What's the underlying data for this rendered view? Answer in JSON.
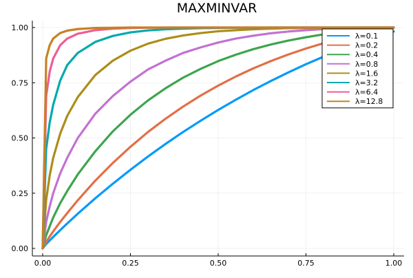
{
  "chart_data": {
    "type": "line",
    "title": "MAXMINVAR",
    "xlabel": "",
    "ylabel": "",
    "xlim": [
      0,
      1
    ],
    "ylim": [
      0,
      1
    ],
    "x_ticks": [
      0,
      0.25,
      0.5,
      0.75,
      1
    ],
    "y_ticks": [
      0,
      0.25,
      0.5,
      0.75,
      1
    ],
    "x_tick_labels": [
      "0.00",
      "0.25",
      "0.50",
      "0.75",
      "1.00"
    ],
    "y_tick_labels": [
      "0.00",
      "0.25",
      "0.50",
      "0.75",
      "1.00"
    ],
    "grid": true,
    "legend_position": "top-right",
    "x": [
      0,
      0.01,
      0.02,
      0.03,
      0.05,
      0.07,
      0.1,
      0.15,
      0.2,
      0.25,
      0.3,
      0.35,
      0.4,
      0.45,
      0.5,
      0.55,
      0.6,
      0.65,
      0.7,
      0.75,
      0.8,
      0.85,
      0.9,
      0.95,
      1.0
    ],
    "series": [
      {
        "name": "λ=0.1",
        "color": "#009af9",
        "values": [
          0,
          0.02,
          0.036,
          0.052,
          0.083,
          0.113,
          0.157,
          0.227,
          0.293,
          0.356,
          0.416,
          0.473,
          0.527,
          0.578,
          0.627,
          0.673,
          0.717,
          0.758,
          0.797,
          0.834,
          0.868,
          0.9,
          0.93,
          0.957,
          0.982
        ]
      },
      {
        "name": "λ=0.2",
        "color": "#e26f46",
        "values": [
          0,
          0.029,
          0.054,
          0.077,
          0.12,
          0.16,
          0.218,
          0.307,
          0.387,
          0.46,
          0.527,
          0.587,
          0.642,
          0.692,
          0.737,
          0.778,
          0.815,
          0.848,
          0.878,
          0.905,
          0.929,
          0.95,
          0.969,
          0.986,
          1.0
        ]
      },
      {
        "name": "λ=0.4",
        "color": "#3da44d",
        "values": [
          0,
          0.06,
          0.1,
          0.14,
          0.205,
          0.26,
          0.335,
          0.44,
          0.53,
          0.605,
          0.67,
          0.725,
          0.773,
          0.813,
          0.848,
          0.877,
          0.902,
          0.923,
          0.941,
          0.956,
          0.969,
          0.98,
          0.989,
          0.996,
          1.0
        ]
      },
      {
        "name": "λ=0.8",
        "color": "#c271d2",
        "values": [
          0,
          0.12,
          0.19,
          0.25,
          0.34,
          0.41,
          0.5,
          0.61,
          0.69,
          0.755,
          0.81,
          0.85,
          0.885,
          0.91,
          0.932,
          0.95,
          0.963,
          0.974,
          0.982,
          0.988,
          0.993,
          0.996,
          0.998,
          0.999,
          1.0
        ]
      },
      {
        "name": "λ=1.6",
        "color": "#ac8d18",
        "values": [
          0,
          0.22,
          0.33,
          0.41,
          0.52,
          0.6,
          0.685,
          0.785,
          0.85,
          0.895,
          0.927,
          0.949,
          0.964,
          0.975,
          0.983,
          0.988,
          0.992,
          0.995,
          0.997,
          0.998,
          0.999,
          0.999,
          1.0,
          1.0,
          1.0
        ]
      },
      {
        "name": "λ=3.2",
        "color": "#00a9ad",
        "values": [
          0,
          0.45,
          0.57,
          0.65,
          0.76,
          0.83,
          0.885,
          0.935,
          0.962,
          0.978,
          0.987,
          0.992,
          0.995,
          0.997,
          0.998,
          0.999,
          0.999,
          1.0,
          1.0,
          1.0,
          1.0,
          1.0,
          1.0,
          1.0,
          1.0
        ]
      },
      {
        "name": "λ=6.4",
        "color": "#ed5d92",
        "values": [
          0,
          0.69,
          0.8,
          0.86,
          0.92,
          0.95,
          0.972,
          0.988,
          0.995,
          0.998,
          0.999,
          1.0,
          1.0,
          1.0,
          1.0,
          1.0,
          1.0,
          1.0,
          1.0,
          1.0,
          1.0,
          1.0,
          1.0,
          1.0,
          1.0
        ]
      },
      {
        "name": "λ=12.8",
        "color": "#c68125",
        "values": [
          0,
          0.86,
          0.92,
          0.95,
          0.975,
          0.986,
          0.993,
          0.998,
          0.999,
          1.0,
          1.0,
          1.0,
          1.0,
          1.0,
          1.0,
          1.0,
          1.0,
          1.0,
          1.0,
          1.0,
          1.0,
          1.0,
          1.0,
          1.0,
          1.0
        ]
      }
    ]
  }
}
